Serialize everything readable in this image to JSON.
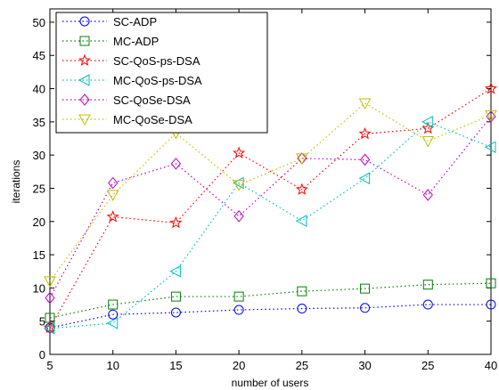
{
  "chart_data": {
    "type": "line",
    "title": "",
    "xlabel": "number of users",
    "ylabel": "iterations",
    "x_tick_labels": [
      "5",
      "10",
      "15",
      "20",
      "25",
      "30",
      "25",
      "40"
    ],
    "ylim": [
      0,
      52
    ],
    "y_ticks": [
      0,
      5,
      10,
      15,
      20,
      25,
      30,
      35,
      40,
      45,
      50
    ],
    "grid": false,
    "legend_position": "top-left",
    "series": [
      {
        "name": "SC-ADP",
        "color": "#0000ff",
        "marker": "circle",
        "values": [
          4,
          6,
          6.3,
          6.7,
          6.9,
          7,
          7.5,
          7.5
        ]
      },
      {
        "name": "MC-ADP",
        "color": "#008000",
        "marker": "square",
        "values": [
          5.5,
          7.5,
          8.7,
          8.7,
          9.5,
          9.9,
          10.5,
          10.7
        ]
      },
      {
        "name": "SC-QoS-ps-DSA",
        "color": "#ff0000",
        "marker": "star",
        "values": [
          4,
          20.7,
          19.8,
          30.3,
          24.8,
          33.2,
          34,
          40
        ]
      },
      {
        "name": "MC-QoS-ps-DSA",
        "color": "#00bfbf",
        "marker": "triangle-left",
        "values": [
          3.9,
          4.7,
          12.5,
          25.8,
          20.1,
          26.5,
          35,
          31.2
        ]
      },
      {
        "name": "SC-QoSe-DSA",
        "color": "#bf00bf",
        "marker": "diamond",
        "values": [
          8.5,
          25.8,
          28.7,
          20.8,
          29.5,
          29.3,
          24,
          35.8
        ]
      },
      {
        "name": "MC-QoSe-DSA",
        "color": "#bfbf00",
        "marker": "triangle-down",
        "values": [
          11,
          24,
          33.3,
          25.5,
          29.5,
          37.8,
          32.1,
          36
        ]
      }
    ]
  }
}
